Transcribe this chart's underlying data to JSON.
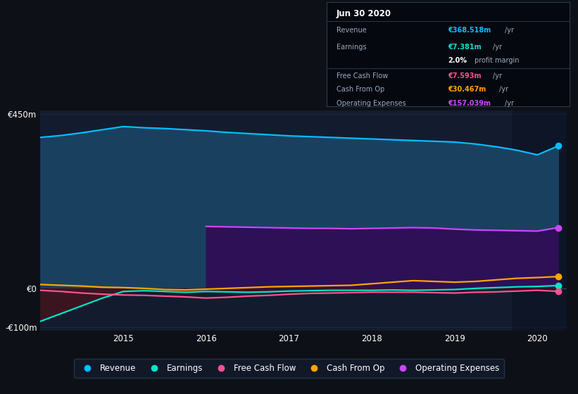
{
  "bg_color": "#0d1117",
  "plot_bg_color": "#131c2e",
  "years": [
    2014.0,
    2014.25,
    2014.5,
    2014.75,
    2015.0,
    2015.25,
    2015.5,
    2015.75,
    2016.0,
    2016.25,
    2016.5,
    2016.75,
    2017.0,
    2017.25,
    2017.5,
    2017.75,
    2018.0,
    2018.25,
    2018.5,
    2018.75,
    2019.0,
    2019.25,
    2019.5,
    2019.75,
    2020.0,
    2020.25
  ],
  "revenue": [
    390,
    395,
    402,
    410,
    418,
    415,
    413,
    410,
    407,
    403,
    400,
    397,
    394,
    392,
    390,
    388,
    386,
    384,
    382,
    380,
    378,
    373,
    366,
    357,
    345,
    368
  ],
  "opex": [
    0,
    0,
    0,
    0,
    0,
    0,
    0,
    0,
    160,
    159,
    158,
    157,
    156,
    155,
    155,
    154,
    155,
    156,
    157,
    156,
    153,
    151,
    150,
    149,
    148,
    157
  ],
  "earnings": [
    -85,
    -65,
    -45,
    -25,
    -8,
    -6,
    -8,
    -10,
    -8,
    -9,
    -10,
    -9,
    -7,
    -6,
    -5,
    -5,
    -5,
    -4,
    -5,
    -4,
    -3,
    0,
    2,
    4,
    5,
    7.4
  ],
  "fcf": [
    -5,
    -8,
    -12,
    -15,
    -17,
    -18,
    -20,
    -22,
    -25,
    -23,
    -20,
    -18,
    -15,
    -13,
    -12,
    -11,
    -10,
    -10,
    -10,
    -11,
    -12,
    -10,
    -9,
    -7,
    -5,
    -7.6
  ],
  "cashop": [
    10,
    8,
    6,
    3,
    2,
    0,
    -3,
    -4,
    -2,
    0,
    2,
    4,
    5,
    6,
    7,
    8,
    12,
    16,
    20,
    18,
    16,
    18,
    22,
    26,
    28,
    30.5
  ],
  "revenue_color": "#00bfff",
  "revenue_fill": "#1a4060",
  "opex_color": "#cc44ff",
  "opex_fill": "#2d1055",
  "earnings_color": "#00e5cc",
  "fcf_color": "#ff5090",
  "cashop_color": "#ffa500",
  "neg_fill": "#3a1520",
  "ylim": [
    -110,
    460
  ],
  "xlim": [
    2014.0,
    2020.35
  ],
  "yticks": [
    -100,
    0,
    450
  ],
  "ytick_labels": [
    "-€100m",
    "€0",
    "€450m"
  ],
  "xticks": [
    2015,
    2016,
    2017,
    2018,
    2019,
    2020
  ],
  "grid_color": "#1e2d45",
  "darker_band_start": 2019.7,
  "darker_band_end": 2020.35,
  "darker_band_color": "#0a1020"
}
